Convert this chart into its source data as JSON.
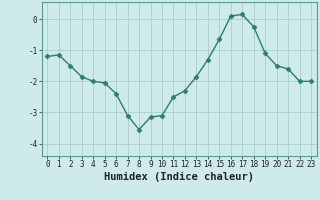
{
  "x": [
    0,
    1,
    2,
    3,
    4,
    5,
    6,
    7,
    8,
    9,
    10,
    11,
    12,
    13,
    14,
    15,
    16,
    17,
    18,
    19,
    20,
    21,
    22,
    23
  ],
  "y": [
    -1.2,
    -1.15,
    -1.5,
    -1.85,
    -2.0,
    -2.05,
    -2.4,
    -3.1,
    -3.55,
    -3.15,
    -3.1,
    -2.5,
    -2.3,
    -1.85,
    -1.3,
    -0.65,
    0.1,
    0.15,
    -0.25,
    -1.1,
    -1.5,
    -1.6,
    -2.0,
    -2.0
  ],
  "line_color": "#2e7d6e",
  "marker": "D",
  "marker_size": 2.5,
  "background_color": "#ceeaea",
  "grid_color": "#aacece",
  "xlabel": "Humidex (Indice chaleur)",
  "ylabel": "",
  "xlim": [
    -0.5,
    23.5
  ],
  "ylim": [
    -4.4,
    0.55
  ],
  "yticks": [
    0,
    -1,
    -2,
    -3,
    -4
  ],
  "xticks": [
    0,
    1,
    2,
    3,
    4,
    5,
    6,
    7,
    8,
    9,
    10,
    11,
    12,
    13,
    14,
    15,
    16,
    17,
    18,
    19,
    20,
    21,
    22,
    23
  ],
  "tick_fontsize": 5.5,
  "xlabel_fontsize": 7.5,
  "line_width": 1.0
}
